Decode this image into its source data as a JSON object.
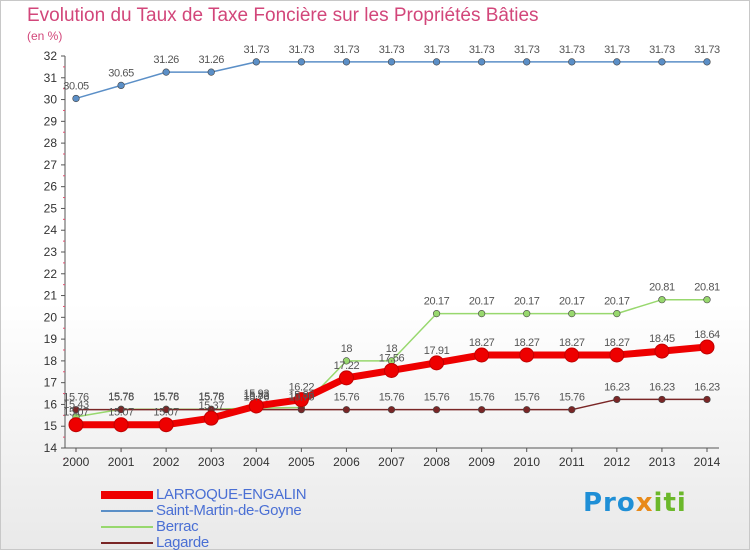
{
  "title": "Evolution du Taux de Taxe Foncière sur les Propriétés Bâties",
  "unit_label": "(en %)",
  "logo": {
    "text": "Proxiti"
  },
  "chart_data": {
    "type": "line",
    "x": [
      2000,
      2001,
      2002,
      2003,
      2004,
      2005,
      2006,
      2007,
      2008,
      2009,
      2010,
      2011,
      2012,
      2013,
      2014
    ],
    "ylim": [
      14,
      32
    ],
    "yticks": [
      14,
      15,
      16,
      17,
      18,
      19,
      20,
      21,
      22,
      23,
      24,
      25,
      26,
      27,
      28,
      29,
      30,
      31,
      32
    ],
    "grid": false,
    "legend_position": "bottom-left",
    "series": [
      {
        "name": "Saint-Martin-de-Goyne",
        "color": "#5b8fc7",
        "values": [
          30.05,
          30.65,
          31.26,
          31.26,
          31.73,
          31.73,
          31.73,
          31.73,
          31.73,
          31.73,
          31.73,
          31.73,
          31.73,
          31.73,
          31.73
        ]
      },
      {
        "name": "Berrac",
        "color": "#98d86e",
        "values": [
          15.43,
          15.78,
          15.78,
          15.78,
          15.83,
          15.86,
          18,
          18,
          20.17,
          20.17,
          20.17,
          20.17,
          20.17,
          20.81,
          20.81
        ]
      },
      {
        "name": "Lagarde",
        "color": "#7a2626",
        "values": [
          15.76,
          15.76,
          15.76,
          15.76,
          15.76,
          15.76,
          15.76,
          15.76,
          15.76,
          15.76,
          15.76,
          15.76,
          16.23,
          16.23,
          16.23
        ]
      },
      {
        "name": "LARROQUE-ENGALIN",
        "color": "#ee0000",
        "values": [
          15.07,
          15.07,
          15.07,
          15.37,
          15.93,
          16.22,
          17.22,
          17.56,
          17.91,
          18.27,
          18.27,
          18.27,
          18.27,
          18.45,
          18.64
        ]
      }
    ]
  }
}
